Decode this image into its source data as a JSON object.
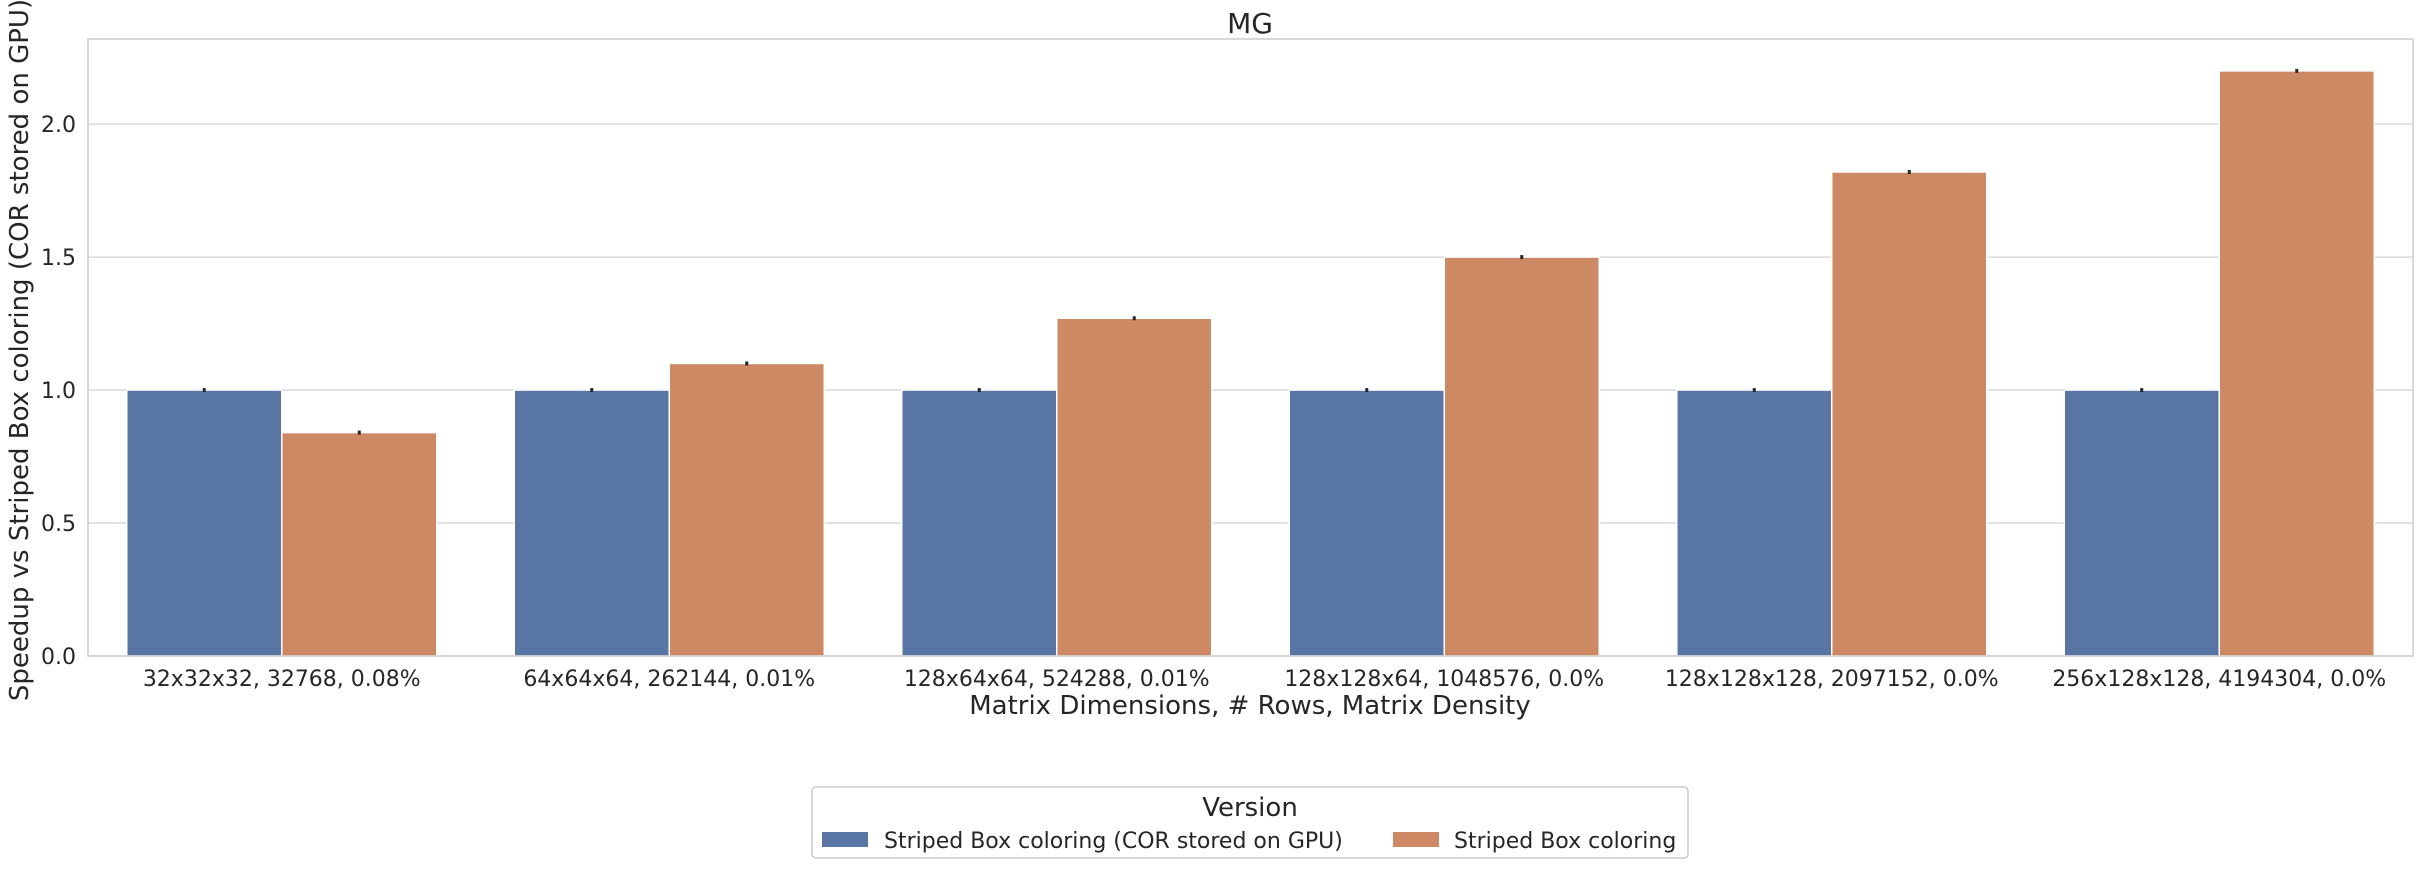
{
  "chart_data": {
    "type": "bar",
    "title": "MG",
    "xlabel": "Matrix Dimensions, # Rows, Matrix Density",
    "ylabel": "Speedup vs Striped Box coloring (COR stored on GPU)",
    "ylim": [
      0,
      2.32
    ],
    "yticks": [
      "0.0",
      "0.5",
      "1.0",
      "1.5",
      "2.0"
    ],
    "grid": "horizontal",
    "categories": [
      "32x32x32, 32768, 0.08%",
      "64x64x64, 262144, 0.01%",
      "128x64x64, 524288, 0.01%",
      "128x128x64, 1048576, 0.0%",
      "128x128x128, 2097152, 0.0%",
      "256x128x128, 4194304, 0.0%"
    ],
    "series": [
      {
        "name": "Striped Box coloring (COR stored on GPU)",
        "color": "#5975a4",
        "values": [
          1.0,
          1.0,
          1.0,
          1.0,
          1.0,
          1.0
        ]
      },
      {
        "name": "Striped Box coloring",
        "color": "#cc8963",
        "values": [
          0.84,
          1.1,
          1.27,
          1.5,
          1.82,
          2.2
        ]
      }
    ],
    "legend": {
      "title": "Version",
      "placement": "bottom-center"
    }
  }
}
